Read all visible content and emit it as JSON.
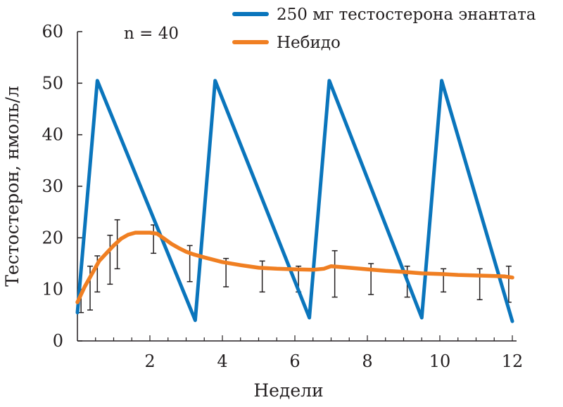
{
  "chart_data": {
    "type": "line",
    "annotation": "n = 40",
    "xlabel": "Недели",
    "ylabel": "Тестостерон, нмоль/л",
    "xlim": [
      0,
      12
    ],
    "ylim": [
      0,
      60
    ],
    "x_ticks": [
      2,
      4,
      6,
      8,
      10,
      12
    ],
    "y_ticks": [
      0,
      10,
      20,
      30,
      40,
      50,
      60
    ],
    "grid": false,
    "legend_position": "top-right",
    "series": [
      {
        "name": "250 мг тестостерона энантата",
        "color": "#0a75bc",
        "x": [
          0,
          0.55,
          3.25,
          3.8,
          6.4,
          6.95,
          9.5,
          10.05,
          12
        ],
        "y": [
          5.5,
          50.5,
          4,
          50.5,
          4.5,
          50.5,
          4.5,
          50.5,
          3.8
        ]
      },
      {
        "name": "Небидо",
        "color": "#f07f22",
        "x": [
          0,
          0.2,
          0.4,
          0.6,
          0.8,
          1.0,
          1.2,
          1.4,
          1.6,
          1.8,
          2.0,
          2.2,
          2.4,
          2.6,
          2.8,
          3.0,
          3.2,
          3.5,
          4.0,
          4.5,
          5.0,
          5.5,
          6.0,
          6.5,
          6.8,
          7.0,
          7.5,
          8.0,
          8.5,
          9.0,
          9.5,
          10.0,
          10.5,
          11.0,
          11.5,
          11.8,
          12.0
        ],
        "y": [
          7.5,
          10.5,
          13,
          15.5,
          17,
          18.5,
          19.8,
          20.6,
          21,
          21,
          21,
          20.8,
          19.8,
          18.8,
          18,
          17.3,
          16.8,
          16.2,
          15.3,
          14.7,
          14.2,
          14,
          13.9,
          13.8,
          14,
          14.5,
          14.2,
          13.9,
          13.6,
          13.4,
          13.1,
          13,
          12.8,
          12.7,
          12.6,
          12.5,
          12.3
        ]
      }
    ],
    "error_bars": {
      "series": "Небидо",
      "points": [
        {
          "x": 0.1,
          "low": 5.5,
          "high": 9.5
        },
        {
          "x": 0.35,
          "low": 6,
          "high": 14.5
        },
        {
          "x": 0.55,
          "low": 9.5,
          "high": 16.5
        },
        {
          "x": 0.9,
          "low": 11,
          "high": 20.5
        },
        {
          "x": 1.1,
          "low": 14,
          "high": 23.5
        },
        {
          "x": 2.1,
          "low": 17,
          "high": 22.5
        },
        {
          "x": 3.1,
          "low": 11.5,
          "high": 18.5
        },
        {
          "x": 4.1,
          "low": 10.5,
          "high": 16
        },
        {
          "x": 5.1,
          "low": 9.5,
          "high": 15.5
        },
        {
          "x": 6.1,
          "low": 9.5,
          "high": 14.5
        },
        {
          "x": 7.1,
          "low": 8.5,
          "high": 17.5
        },
        {
          "x": 8.1,
          "low": 9,
          "high": 15
        },
        {
          "x": 9.1,
          "low": 8.5,
          "high": 14.5
        },
        {
          "x": 10.1,
          "low": 9.5,
          "high": 14
        },
        {
          "x": 11.1,
          "low": 8,
          "high": 14
        },
        {
          "x": 11.9,
          "low": 7.5,
          "high": 14.5
        }
      ]
    }
  }
}
